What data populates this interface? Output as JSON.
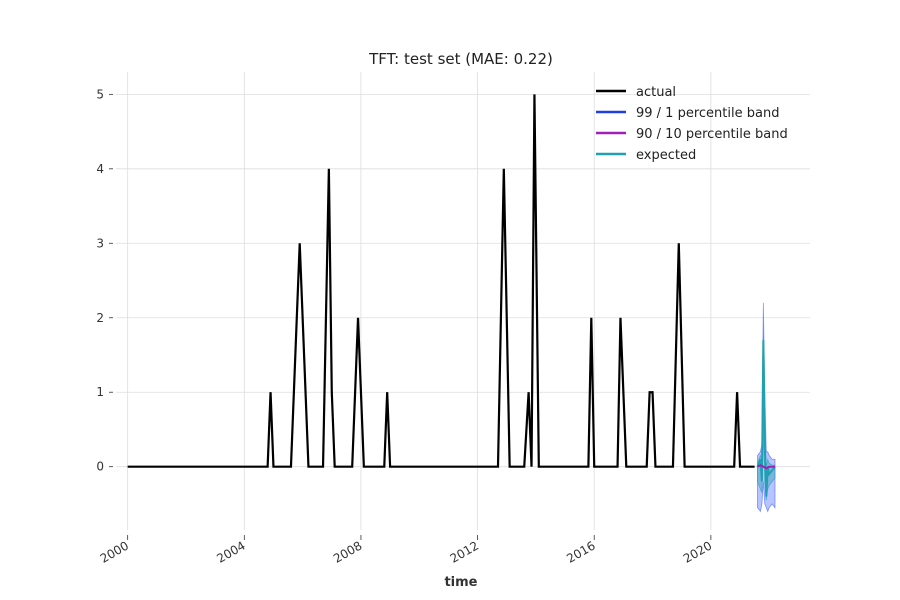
{
  "chart_data": {
    "type": "line",
    "title": "TFT: test set (MAE: 0.22)",
    "xlabel": "time",
    "ylabel": "",
    "xlim": [
      1999.6,
      2023.4
    ],
    "ylim": [
      -0.85,
      5.3
    ],
    "x_ticks": [
      {
        "value": 2000,
        "label": "2000"
      },
      {
        "value": 2004,
        "label": "2004"
      },
      {
        "value": 2008,
        "label": "2008"
      },
      {
        "value": 2012,
        "label": "2012"
      },
      {
        "value": 2016,
        "label": "2016"
      },
      {
        "value": 2020,
        "label": "2020"
      }
    ],
    "y_ticks": [
      {
        "value": 0,
        "label": "0"
      },
      {
        "value": 1,
        "label": "1"
      },
      {
        "value": 2,
        "label": "2"
      },
      {
        "value": 3,
        "label": "3"
      },
      {
        "value": 4,
        "label": "4"
      },
      {
        "value": 5,
        "label": "5"
      }
    ],
    "legend_position": "top-right",
    "legend": [
      {
        "name": "actual",
        "color": "#000000"
      },
      {
        "name": "99 / 1 percentile band",
        "color": "#1f3fe0"
      },
      {
        "name": "90 / 10 percentile band",
        "color": "#a020b8"
      },
      {
        "name": "expected",
        "color": "#20a0b0"
      }
    ],
    "series": [
      {
        "name": "actual",
        "color": "#000000",
        "x": [
          2000.0,
          2004.8,
          2004.9,
          2005.0,
          2005.6,
          2005.9,
          2006.2,
          2006.7,
          2006.9,
          2007.0,
          2007.1,
          2007.7,
          2007.9,
          2008.1,
          2008.8,
          2008.9,
          2009.0,
          2012.7,
          2012.9,
          2013.1,
          2013.6,
          2013.75,
          2013.85,
          2013.95,
          2014.1,
          2015.8,
          2015.9,
          2016.0,
          2016.8,
          2016.9,
          2017.1,
          2017.8,
          2017.9,
          2018.0,
          2018.1,
          2018.7,
          2018.9,
          2019.1,
          2020.8,
          2020.9,
          2021.0,
          2021.5
        ],
        "values": [
          0,
          0,
          1,
          0,
          0,
          3,
          0,
          0,
          4,
          1,
          0,
          0,
          2,
          0,
          0,
          1,
          0,
          0,
          4,
          0,
          0,
          1,
          0,
          5,
          0,
          0,
          2,
          0,
          0,
          2,
          0,
          0,
          1,
          1,
          0,
          0,
          3,
          0,
          0,
          1,
          0,
          0
        ]
      },
      {
        "name": "expected",
        "color": "#20a0b0",
        "x": [
          2021.6,
          2021.7,
          2021.75,
          2021.8,
          2021.85,
          2021.9,
          2021.95,
          2022.0,
          2022.1,
          2022.2
        ],
        "values": [
          0.0,
          0.1,
          -0.2,
          1.7,
          0.3,
          -0.4,
          0.0,
          -0.1,
          -0.05,
          0.0
        ]
      },
      {
        "name": "90 / 10 percentile band",
        "color": "#a020b8",
        "x": [
          2021.6,
          2021.7,
          2021.8,
          2021.9,
          2022.0,
          2022.2
        ],
        "values": [
          0.0,
          0.02,
          0.0,
          -0.02,
          0.0,
          0.0
        ]
      }
    ],
    "bands": [
      {
        "name": "99 / 1 percentile band",
        "color": "#3355ff",
        "opacity": 0.35,
        "x": [
          2021.6,
          2021.7,
          2021.75,
          2021.8,
          2021.85,
          2021.9,
          2021.95,
          2022.0,
          2022.1,
          2022.2
        ],
        "upper": [
          0.15,
          0.2,
          0.3,
          2.2,
          1.0,
          0.2,
          0.2,
          0.15,
          0.1,
          0.1
        ],
        "lower": [
          -0.55,
          -0.6,
          -0.5,
          -0.2,
          -0.5,
          -0.55,
          -0.6,
          -0.55,
          -0.5,
          -0.55
        ]
      },
      {
        "name": "90 / 10 percentile band",
        "color": "#20a0b0",
        "opacity": 0.4,
        "x": [
          2021.6,
          2021.7,
          2021.75,
          2021.8,
          2021.85,
          2021.9,
          2021.95,
          2022.0,
          2022.1,
          2022.2
        ],
        "upper": [
          0.05,
          0.15,
          0.1,
          1.75,
          0.6,
          0.0,
          0.1,
          0.05,
          0.02,
          0.02
        ],
        "lower": [
          -0.2,
          -0.3,
          -0.35,
          0.5,
          -0.2,
          -0.45,
          -0.3,
          -0.25,
          -0.2,
          -0.15
        ]
      }
    ]
  }
}
